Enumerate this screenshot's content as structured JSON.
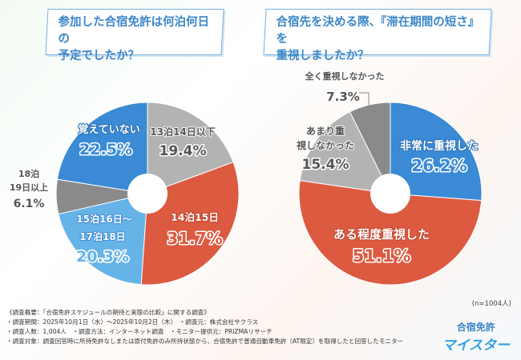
{
  "chart_data": [
    {
      "type": "pie",
      "title": "参加した合宿免許は何泊何日の予定でしたか？",
      "start": "top",
      "direction": "clockwise",
      "donut_hole": true,
      "slices": [
        {
          "label": "13泊14日以下",
          "value": 19.4,
          "display": "19.4%",
          "color": "#b3b3b3"
        },
        {
          "label": "14泊15日",
          "value": 31.7,
          "display": "31.7%",
          "color": "#dc5a40"
        },
        {
          "label": "15泊16日〜17泊18日",
          "value": 20.3,
          "display": "20.3%",
          "color": "#66b3e8"
        },
        {
          "label": "18泊19日以上",
          "value": 6.1,
          "display": "6.1%",
          "color": "#8a8a8a"
        },
        {
          "label": "覚えていない",
          "value": 22.5,
          "display": "22.5%",
          "color": "#3a8ad6"
        }
      ]
    },
    {
      "type": "pie",
      "title": "合宿先を決める際、『滞在期間の短さ』を重視しましたか？",
      "start": "top",
      "direction": "clockwise",
      "donut_hole": true,
      "slices": [
        {
          "label": "非常に重視した",
          "value": 26.2,
          "display": "26.2%",
          "color": "#3a8ad6"
        },
        {
          "label": "ある程度重視した",
          "value": 51.1,
          "display": "51.1%",
          "color": "#dc5a40"
        },
        {
          "label": "あまり重視しなかった",
          "value": 15.4,
          "display": "15.4%",
          "color": "#b3b3b3"
        },
        {
          "label": "全く重視しなかった",
          "value": 7.3,
          "display": "7.3%",
          "color": "#8a8a8a"
        }
      ]
    }
  ],
  "q1": {
    "line1": "参加した合宿免許は何泊何日の",
    "line2": "予定でしたか？"
  },
  "q2": {
    "line1": "合宿先を決める際、『滞在期間の短さ』を",
    "line2": "重視しましたか？"
  },
  "sample": "(n=1004人)",
  "footer": [
    "《調査概要：「合宿免許スケジュールの期待と実態の比較」に関する調査》",
    "・調査期間：2025年10月1日（水）～2025年10月2日（木）　・調査元：株式会社サクラス",
    "・調査人数：1,004人　・調査方法：インターネット調査　・モニター提供元：PRIZMAリサーチ",
    "・調査対象：調査回答時に所持免許なしまたは原付免許のみ所持状態から、合宿免許で普通自動車免許（AT限定）を取得したと回答したモニター"
  ],
  "logo": {
    "line1": "合宿免許",
    "line2": "マイスター"
  }
}
